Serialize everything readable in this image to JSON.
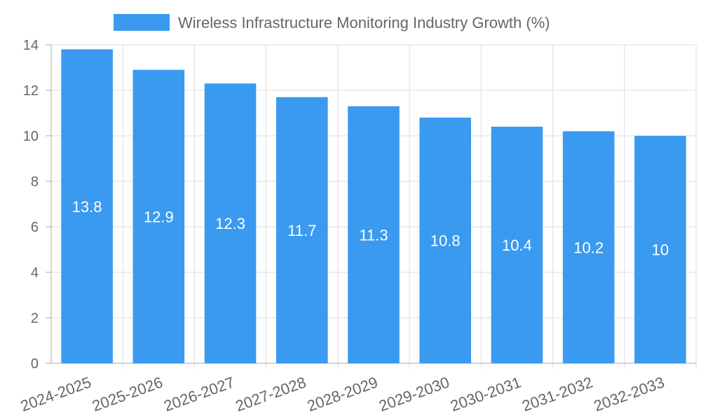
{
  "chart_data": {
    "type": "bar",
    "title": "",
    "legend_label": "Wireless Infrastructure Monitoring Industry Growth (%)",
    "categories": [
      "2024-2025",
      "2025-2026",
      "2026-2027",
      "2027-2028",
      "2028-2029",
      "2029-2030",
      "2030-2031",
      "2031-2032",
      "2032-2033"
    ],
    "values": [
      13.8,
      12.9,
      12.3,
      11.7,
      11.3,
      10.8,
      10.4,
      10.2,
      10
    ],
    "value_labels": [
      "13.8",
      "12.9",
      "12.3",
      "11.7",
      "11.3",
      "10.8",
      "10.4",
      "10.2",
      "10"
    ],
    "y_ticks": [
      0,
      2,
      4,
      6,
      8,
      10,
      12,
      14
    ],
    "y_tick_labels": [
      "0",
      "2",
      "4",
      "6",
      "8",
      "10",
      "12",
      "14"
    ],
    "ylim": [
      0,
      14
    ],
    "xlabel": "",
    "ylabel": "",
    "grid": true,
    "legend_position": "top-center",
    "colors": {
      "bar": "#3a9af0",
      "grid": "#dddddd",
      "axis": "#aaaaaa",
      "text": "#666666"
    }
  }
}
